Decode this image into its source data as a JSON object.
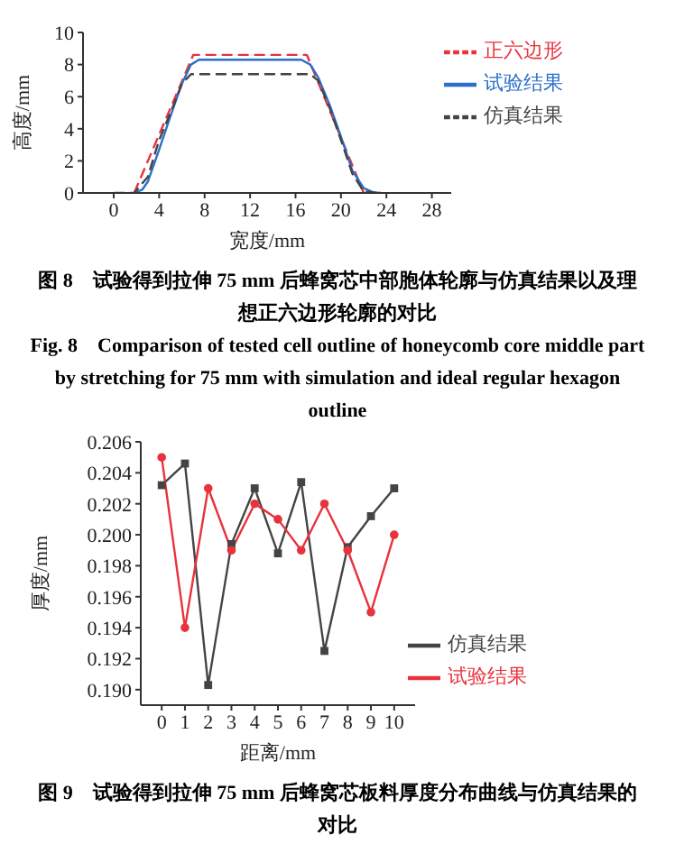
{
  "chart_data": [
    {
      "type": "line",
      "xlabel": "宽度/mm",
      "ylabel": "高度/mm",
      "xlim": [
        -2.7,
        29.7
      ],
      "xticks": [
        0,
        4,
        8,
        12,
        16,
        20,
        24,
        28
      ],
      "ylim": [
        0,
        10
      ],
      "yticks": [
        0,
        2,
        4,
        6,
        8,
        10
      ],
      "legend": "top right",
      "marker": "none",
      "series": [
        {
          "name": "正六边形",
          "color": "#e8323c",
          "line_style": "dashed",
          "x": [
            1.8,
            7,
            17,
            22,
            23.5
          ],
          "values": [
            0,
            8.6,
            8.6,
            0,
            0
          ]
        },
        {
          "name": "试验结果",
          "color": "#2a6fc9",
          "line_style": "solid",
          "x": [
            1.8,
            2.5,
            3,
            4,
            5,
            6,
            6.8,
            7.5,
            16.5,
            17.3,
            18,
            19,
            20,
            21,
            22,
            23,
            23.5
          ],
          "values": [
            0,
            0.2,
            0.7,
            2.7,
            4.8,
            6.8,
            8,
            8.3,
            8.3,
            8,
            7.2,
            5.5,
            3.5,
            1.4,
            0.3,
            0,
            0
          ]
        },
        {
          "name": "仿真结果",
          "color": "#444444",
          "line_style": "dashed",
          "x": [
            0,
            1.8,
            3,
            4,
            5,
            6,
            6.8,
            17.3,
            18,
            19,
            20,
            21,
            22,
            23.5
          ],
          "values": [
            0,
            0,
            1,
            3.3,
            5,
            6.8,
            7.4,
            7.4,
            7,
            5.3,
            3.3,
            1.2,
            0.1,
            0
          ]
        }
      ],
      "annotations": [
        "图 8　试验得到拉伸 75 mm 后蜂窝芯中部胞体轮廓与仿真结果以及理想正六边形轮廓的对比",
        "Fig. 8　Comparison of tested cell outline of honeycomb core middle part by stretching for 75 mm with simulation and ideal regular hexagon outline"
      ]
    },
    {
      "type": "line",
      "xlabel": "距离/mm",
      "ylabel": "厚度/mm",
      "x": [
        0,
        1,
        2,
        3,
        4,
        5,
        6,
        7,
        8,
        9,
        10
      ],
      "xlim": [
        -0.9,
        10.9
      ],
      "xticks": [
        0,
        1,
        2,
        3,
        4,
        5,
        6,
        7,
        8,
        9,
        10
      ],
      "ylim": [
        0.189,
        0.206
      ],
      "yticks": [
        {
          "value": 0.19,
          "label": "0.190"
        },
        0.192,
        0.194,
        0.196,
        0.198,
        {
          "value": 0.2,
          "label": "0.200"
        },
        0.202,
        0.204,
        0.206
      ],
      "legend": "bottom right",
      "line_style": "solid",
      "series": [
        {
          "name": "仿真结果",
          "color": "#444444",
          "marker": "square",
          "values": [
            0.2032,
            0.2046,
            0.1903,
            0.1994,
            0.203,
            0.1988,
            0.2034,
            0.1925,
            0.1992,
            0.2012,
            0.203
          ]
        },
        {
          "name": "试验结果",
          "color": "#e8323c",
          "marker": "circle",
          "values": [
            0.205,
            0.194,
            0.203,
            0.199,
            0.202,
            0.201,
            0.199,
            0.202,
            0.199,
            0.195,
            0.2
          ]
        }
      ],
      "annotations": [
        "图 9　试验得到拉伸 75 mm 后蜂窝芯板料厚度分布曲线与仿真结果的对比"
      ]
    }
  ]
}
